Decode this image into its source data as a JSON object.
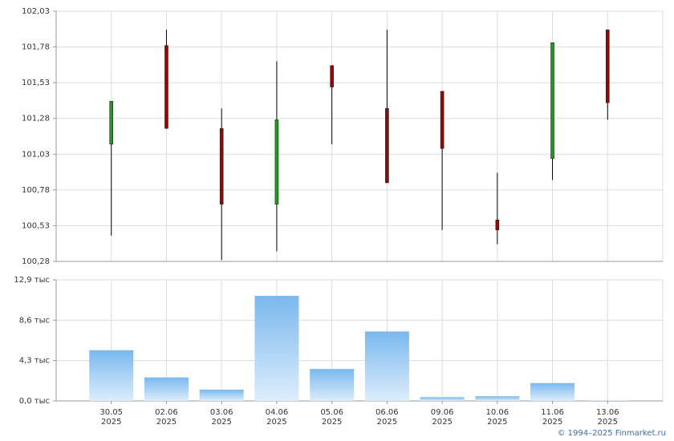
{
  "chart_data": [
    {
      "type": "candlestick",
      "open": [
        101.1,
        101.79,
        101.21,
        100.68,
        101.65,
        101.35,
        101.47,
        100.57,
        101.0,
        101.9
      ],
      "high": [
        101.4,
        101.9,
        101.35,
        101.68,
        101.65,
        101.9,
        101.47,
        100.9,
        101.81,
        101.9
      ],
      "low": [
        100.46,
        101.21,
        100.29,
        100.35,
        101.1,
        100.83,
        100.5,
        100.4,
        100.85,
        101.27
      ],
      "close": [
        101.4,
        101.21,
        100.68,
        101.27,
        101.5,
        100.83,
        101.07,
        100.5,
        101.81,
        101.39
      ],
      "up_color": "#1e9a1e",
      "down_color": "#8b0a0a",
      "ylim": [
        100.28,
        102.03
      ],
      "yticks": [
        {
          "value": 100.28,
          "label": "100,28"
        },
        {
          "value": 100.53,
          "label": "100,53"
        },
        {
          "value": 100.78,
          "label": "100,78"
        },
        {
          "value": 101.03,
          "label": "101,03"
        },
        {
          "value": 101.28,
          "label": "101,28"
        },
        {
          "value": 101.53,
          "label": "101,53"
        },
        {
          "value": 101.78,
          "label": "101,78"
        },
        {
          "value": 102.03,
          "label": "102,03"
        }
      ],
      "grid": true
    },
    {
      "type": "bar",
      "categories": [
        "30.05",
        "02.06",
        "03.06",
        "04.06",
        "05.06",
        "06.06",
        "09.06",
        "10.06",
        "11.06",
        "13.06"
      ],
      "years": [
        "2025",
        "2025",
        "2025",
        "2025",
        "2025",
        "2025",
        "2025",
        "2025",
        "2025",
        "2025"
      ],
      "values": [
        5.4,
        2.5,
        1.2,
        11.2,
        3.4,
        7.4,
        0.4,
        0.5,
        1.9,
        0.05
      ],
      "color": "#7ab8ee",
      "ylim": [
        0,
        12.9
      ],
      "yticks": [
        {
          "value": 0,
          "label": "0,0 тыс"
        },
        {
          "value": 4.3,
          "label": "4,3 тыс"
        },
        {
          "value": 8.6,
          "label": "8,6 тыс"
        },
        {
          "value": 12.9,
          "label": "12,9 тыс"
        }
      ],
      "grid": true
    }
  ],
  "footer": "© 1994–2025 Finmarket.ru"
}
